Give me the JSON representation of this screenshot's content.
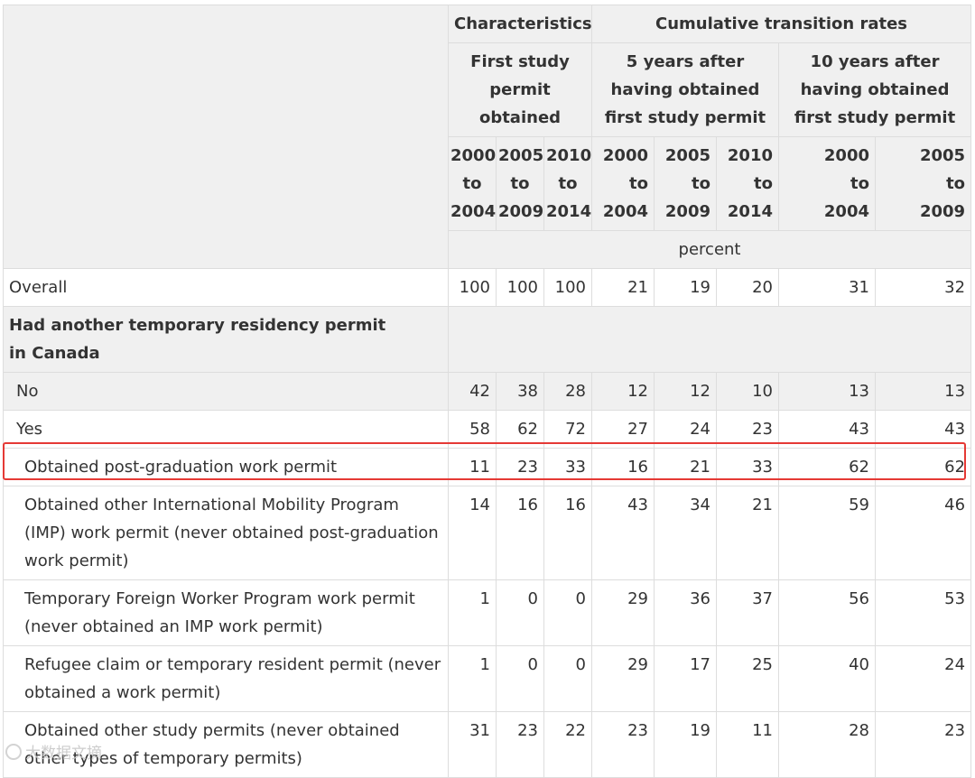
{
  "header": {
    "characteristics": "Characteristics",
    "cumulative": "Cumulative transition rates",
    "first_study": "First study permit obtained",
    "five_years": "5 years after having obtained first study permit",
    "ten_years": "10 years after having obtained first study permit",
    "periods": [
      {
        "a": "2000",
        "b": "to",
        "c": "2004"
      },
      {
        "a": "2005",
        "b": "to",
        "c": "2009"
      },
      {
        "a": "2010",
        "b": "to",
        "c": "2014"
      },
      {
        "a": "2000",
        "b": "to",
        "c": "2004"
      },
      {
        "a": "2005",
        "b": "to",
        "c": "2009"
      },
      {
        "a": "2010",
        "b": "to",
        "c": "2014"
      },
      {
        "a": "2000",
        "b": "to",
        "c": "2004"
      },
      {
        "a": "2005",
        "b": "to",
        "c": "2009"
      }
    ],
    "unit": "percent"
  },
  "rows": {
    "overall": {
      "label": "Overall",
      "values": [
        "100",
        "100",
        "100",
        "21",
        "19",
        "20",
        "31",
        "32"
      ]
    },
    "section": {
      "label": "Had another temporary residency permit in Canada"
    },
    "no": {
      "label": "No",
      "values": [
        "42",
        "38",
        "28",
        "12",
        "12",
        "10",
        "13",
        "13"
      ]
    },
    "yes": {
      "label": "Yes",
      "values": [
        "58",
        "62",
        "72",
        "27",
        "24",
        "23",
        "43",
        "43"
      ]
    },
    "pgwp": {
      "label": "Obtained post-graduation work permit",
      "values": [
        "11",
        "23",
        "33",
        "16",
        "21",
        "33",
        "62",
        "62"
      ]
    },
    "imp": {
      "label": "Obtained other International Mobility Program (IMP) work permit (never obtained post-graduation work permit)",
      "values": [
        "14",
        "16",
        "16",
        "43",
        "34",
        "21",
        "59",
        "46"
      ]
    },
    "tfwp": {
      "label": "Temporary Foreign Worker Program work permit (never obtained an IMP work permit)",
      "values": [
        "1",
        "0",
        "0",
        "29",
        "36",
        "37",
        "56",
        "53"
      ]
    },
    "refugee": {
      "label": "Refugee claim or temporary resident permit (never obtained a work permit)",
      "values": [
        "1",
        "0",
        "0",
        "29",
        "17",
        "25",
        "40",
        "24"
      ]
    },
    "other_study": {
      "label": "Obtained other study permits (never obtained other types of temporary permits)",
      "values": [
        "31",
        "23",
        "22",
        "23",
        "19",
        "11",
        "28",
        "23"
      ]
    }
  },
  "watermark": "大数据文摘"
}
